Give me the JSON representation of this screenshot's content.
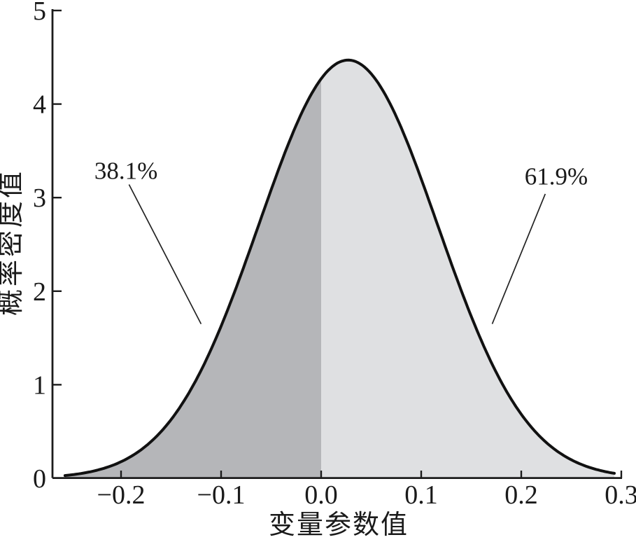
{
  "figure": {
    "background_color": "#ffffff",
    "curve_stroke_color": "#111111",
    "axis_color": "#1c1c1c",
    "leader_line_color": "#222222"
  },
  "chart_data": {
    "type": "area",
    "title": "",
    "xlabel": "变量参数值",
    "ylabel": "概率密度值",
    "xlim": [
      -0.2685,
      0.3005
    ],
    "ylim": [
      0,
      5
    ],
    "grid": false,
    "legend": null,
    "x_ticks": [
      {
        "value": -0.2,
        "label": "−0.2"
      },
      {
        "value": -0.1,
        "label": "−0.1"
      },
      {
        "value": 0.0,
        "label": "0.0"
      },
      {
        "value": 0.1,
        "label": "0.1"
      },
      {
        "value": 0.2,
        "label": "0.2"
      },
      {
        "value": 0.3,
        "label": "0.3"
      }
    ],
    "y_ticks": [
      {
        "value": 0,
        "label": "0"
      },
      {
        "value": 1,
        "label": "1"
      },
      {
        "value": 2,
        "label": "2"
      },
      {
        "value": 3,
        "label": "3"
      },
      {
        "value": 4,
        "label": "4"
      },
      {
        "value": 5,
        "label": "5"
      }
    ],
    "curve": {
      "shape": "normal-pdf",
      "mean": 0.027,
      "sigma": 0.0893,
      "peak_density": 4.47,
      "x_start": -0.256,
      "x_end": 0.293
    },
    "regions": [
      {
        "name": "below-zero",
        "x_from": -0.256,
        "x_to": 0.0,
        "probability_label": "38.1%",
        "fill_color": "#b5b6b9"
      },
      {
        "name": "above-zero",
        "x_from": 0.0,
        "x_to": 0.293,
        "probability_label": "61.9%",
        "fill_color": "#dfe0e2"
      }
    ],
    "annotations": [
      {
        "label": "38.1%",
        "text_x": -0.195,
        "text_y": 3.29,
        "line_x1": -0.192,
        "line_y1": 3.14,
        "line_x2": -0.12,
        "line_y2": 1.65
      },
      {
        "label": "61.9%",
        "text_x": 0.235,
        "text_y": 3.23,
        "line_x1": 0.224,
        "line_y1": 3.04,
        "line_x2": 0.171,
        "line_y2": 1.65
      }
    ]
  }
}
